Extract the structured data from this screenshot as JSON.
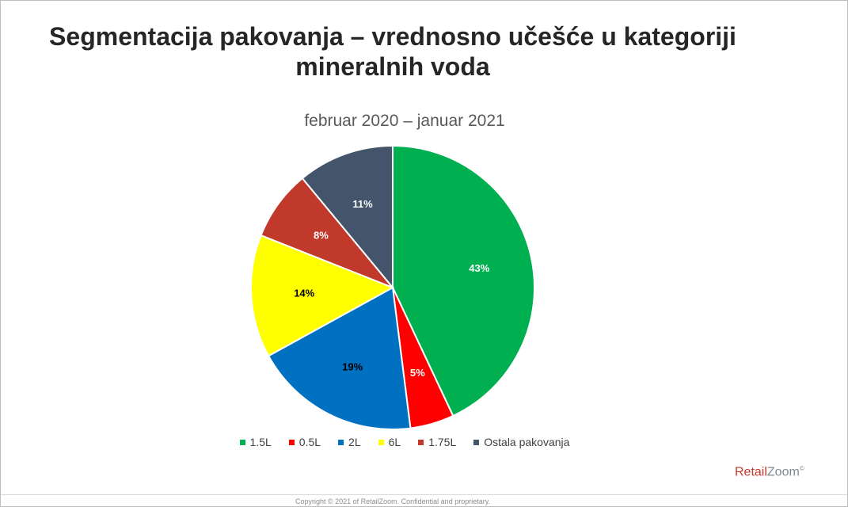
{
  "slide": {
    "title_line1": "Segmentacija pakovanja – vrednosno učešće u kategoriji",
    "title_line2": "mineralnih voda",
    "brand_part1": "Retail",
    "brand_part2": "Zoom",
    "brand_mark": "©",
    "copyright": "Copyright © 2021 of RetailZoom. Confidential and proprietary."
  },
  "chart_data": {
    "type": "pie",
    "title": "",
    "subtitle": "februar 2020 – januar 2021",
    "start_angle_deg": 0,
    "direction": "clockwise",
    "legend_position": "bottom",
    "slices": [
      {
        "name": "1.5L",
        "value": 43,
        "label": "43%",
        "color": "#00b050",
        "label_color": "#ffffff"
      },
      {
        "name": "0.5L",
        "value": 5,
        "label": "5%",
        "color": "#ff0000",
        "label_color": "#ffffff"
      },
      {
        "name": "2L",
        "value": 19,
        "label": "19%",
        "color": "#0070c0",
        "label_color": "#000000"
      },
      {
        "name": "6L",
        "value": 14,
        "label": "14%",
        "color": "#ffff00",
        "label_color": "#000000"
      },
      {
        "name": "1.75L",
        "value": 8,
        "label": "8%",
        "color": "#c0392b",
        "label_color": "#ffffff"
      },
      {
        "name": "Ostala pakovanja",
        "value": 11,
        "label": "11%",
        "color": "#44546a",
        "label_color": "#ffffff"
      }
    ]
  }
}
